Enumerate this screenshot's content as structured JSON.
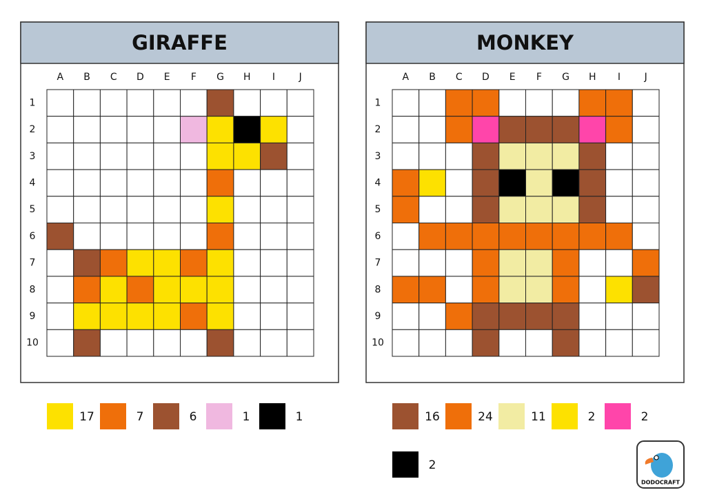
{
  "panels": [
    {
      "title": "GIRAFFE",
      "columns": [
        "A",
        "B",
        "C",
        "D",
        "E",
        "F",
        "G",
        "H",
        "I",
        "J"
      ],
      "rows": [
        "1",
        "2",
        "3",
        "4",
        "5",
        "6",
        "7",
        "8",
        "9",
        "10"
      ],
      "cells": [
        [
          null,
          null,
          null,
          null,
          null,
          null,
          "#9c5230",
          null,
          null,
          null
        ],
        [
          null,
          null,
          null,
          null,
          null,
          "#f0b8e0",
          "#fde100",
          "#000000",
          "#fde100",
          null
        ],
        [
          null,
          null,
          null,
          null,
          null,
          null,
          "#fde100",
          "#fde100",
          "#9c5230",
          null
        ],
        [
          null,
          null,
          null,
          null,
          null,
          null,
          "#ef6f0a",
          null,
          null,
          null
        ],
        [
          null,
          null,
          null,
          null,
          null,
          null,
          "#fde100",
          null,
          null,
          null
        ],
        [
          "#9c5230",
          null,
          null,
          null,
          null,
          null,
          "#ef6f0a",
          null,
          null,
          null
        ],
        [
          null,
          "#9c5230",
          "#ef6f0a",
          "#fde100",
          "#fde100",
          "#ef6f0a",
          "#fde100",
          null,
          null,
          null
        ],
        [
          null,
          "#ef6f0a",
          "#fde100",
          "#ef6f0a",
          "#fde100",
          "#fde100",
          "#fde100",
          null,
          null,
          null
        ],
        [
          null,
          "#fde100",
          "#fde100",
          "#fde100",
          "#fde100",
          "#ef6f0a",
          "#fde100",
          null,
          null,
          null
        ],
        [
          null,
          "#9c5230",
          null,
          null,
          null,
          null,
          "#9c5230",
          null,
          null,
          null
        ]
      ],
      "legend": [
        {
          "color": "#fde100",
          "count": "17"
        },
        {
          "color": "#ef6f0a",
          "count": "7"
        },
        {
          "color": "#9c5230",
          "count": "6"
        },
        {
          "color": "#f0b8e0",
          "count": "1"
        },
        {
          "color": "#000000",
          "count": "1"
        }
      ]
    },
    {
      "title": "MONKEY",
      "columns": [
        "A",
        "B",
        "C",
        "D",
        "E",
        "F",
        "G",
        "H",
        "I",
        "J"
      ],
      "rows": [
        "1",
        "2",
        "3",
        "4",
        "5",
        "6",
        "7",
        "8",
        "9",
        "10"
      ],
      "cells": [
        [
          null,
          null,
          "#ef6f0a",
          "#ef6f0a",
          null,
          null,
          null,
          "#ef6f0a",
          "#ef6f0a",
          null
        ],
        [
          null,
          null,
          "#ef6f0a",
          "#ff45aa",
          "#9c5230",
          "#9c5230",
          "#9c5230",
          "#ff45aa",
          "#ef6f0a",
          null
        ],
        [
          null,
          null,
          null,
          "#9c5230",
          "#f2eca3",
          "#f2eca3",
          "#f2eca3",
          "#9c5230",
          null,
          null
        ],
        [
          "#ef6f0a",
          "#fde100",
          null,
          "#9c5230",
          "#000000",
          "#f2eca3",
          "#000000",
          "#9c5230",
          null,
          null
        ],
        [
          "#ef6f0a",
          null,
          null,
          "#9c5230",
          "#f2eca3",
          "#f2eca3",
          "#f2eca3",
          "#9c5230",
          null,
          null
        ],
        [
          null,
          "#ef6f0a",
          "#ef6f0a",
          "#ef6f0a",
          "#ef6f0a",
          "#ef6f0a",
          "#ef6f0a",
          "#ef6f0a",
          "#ef6f0a",
          null
        ],
        [
          null,
          null,
          null,
          "#ef6f0a",
          "#f2eca3",
          "#f2eca3",
          "#ef6f0a",
          null,
          null,
          "#ef6f0a"
        ],
        [
          "#ef6f0a",
          "#ef6f0a",
          null,
          "#ef6f0a",
          "#f2eca3",
          "#f2eca3",
          "#ef6f0a",
          null,
          "#fde100",
          "#9c5230"
        ],
        [
          null,
          null,
          "#ef6f0a",
          "#9c5230",
          "#9c5230",
          "#9c5230",
          "#9c5230",
          null,
          null,
          null
        ],
        [
          null,
          null,
          null,
          "#9c5230",
          null,
          null,
          "#9c5230",
          null,
          null,
          null
        ]
      ],
      "legend": [
        {
          "color": "#9c5230",
          "count": "16"
        },
        {
          "color": "#ef6f0a",
          "count": "24"
        },
        {
          "color": "#f2eca3",
          "count": "11"
        },
        {
          "color": "#fde100",
          "count": "2"
        },
        {
          "color": "#ff45aa",
          "count": "2"
        },
        {
          "color": "#000000",
          "count": "2"
        }
      ]
    }
  ],
  "logo": "DODOCRAFT"
}
